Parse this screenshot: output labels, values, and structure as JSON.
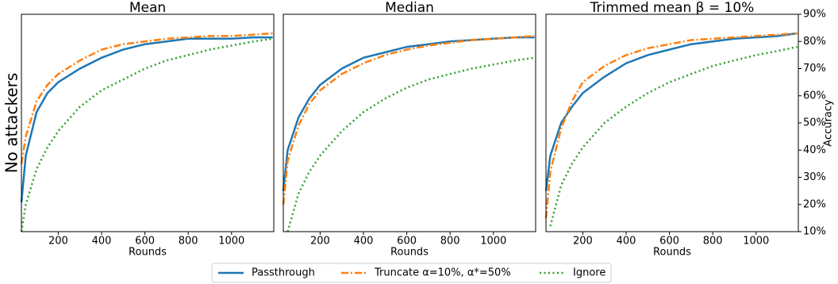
{
  "chart_data": [
    {
      "type": "line",
      "title": "Mean",
      "ylabel": "No attackers",
      "xlabel": "Rounds",
      "x": [
        30,
        50,
        100,
        150,
        200,
        300,
        400,
        500,
        600,
        700,
        800,
        900,
        1000,
        1100,
        1190
      ],
      "xlim": [
        30,
        1195
      ],
      "xticks": [
        200,
        400,
        600,
        800,
        1000
      ],
      "ylim": [
        10,
        90
      ],
      "series": [
        {
          "values": [
            20.8,
            38,
            54,
            61,
            65,
            70,
            74,
            77,
            79,
            80,
            81,
            81,
            81,
            81.5,
            81.5
          ]
        },
        {
          "values": [
            35,
            45,
            58,
            64,
            68,
            73,
            77,
            79,
            80,
            81,
            81.5,
            82,
            82,
            82.5,
            83
          ]
        },
        {
          "values": [
            10,
            20,
            33,
            41,
            47,
            56,
            62,
            66,
            70,
            73,
            75,
            77,
            78.5,
            80,
            81
          ]
        }
      ]
    },
    {
      "type": "line",
      "title": "Median",
      "xlabel": "Rounds",
      "x": [
        30,
        50,
        100,
        150,
        200,
        300,
        400,
        500,
        600,
        700,
        800,
        900,
        1000,
        1100,
        1190
      ],
      "xlim": [
        30,
        1195
      ],
      "xticks": [
        200,
        400,
        600,
        800,
        1000
      ],
      "ylim": [
        10,
        90
      ],
      "series": [
        {
          "values": [
            25,
            40,
            52,
            59,
            64,
            70,
            74,
            76,
            78,
            79,
            80,
            80.5,
            81,
            81.5,
            81.5
          ]
        },
        {
          "values": [
            20,
            36,
            49,
            57,
            62,
            68,
            72,
            75,
            77,
            78.5,
            79.5,
            80.5,
            81,
            81.5,
            82
          ]
        },
        {
          "values": [
            null,
            10,
            24,
            32,
            38,
            47,
            54,
            59,
            63,
            66,
            68,
            70,
            71.5,
            73,
            74
          ]
        }
      ]
    },
    {
      "type": "line",
      "title": "Trimmed mean β = 10%",
      "xlabel": "Rounds",
      "ylabel": "Accuracy",
      "x": [
        30,
        50,
        100,
        150,
        200,
        300,
        400,
        500,
        600,
        700,
        800,
        900,
        1000,
        1100,
        1190
      ],
      "xlim": [
        30,
        1195
      ],
      "xticks": [
        200,
        400,
        600,
        800,
        1000
      ],
      "ylim": [
        10,
        90
      ],
      "yticks": [
        {
          "value": 10,
          "label": "10%"
        },
        {
          "value": 20,
          "label": "20%"
        },
        {
          "value": 30,
          "label": "30%"
        },
        {
          "value": 40,
          "label": "40%"
        },
        {
          "value": 50,
          "label": "50%"
        },
        {
          "value": 60,
          "label": "60%"
        },
        {
          "value": 70,
          "label": "70%"
        },
        {
          "value": 80,
          "label": "80%"
        },
        {
          "value": 90,
          "label": "90%"
        }
      ],
      "series": [
        {
          "values": [
            25,
            38,
            50,
            56,
            61,
            67,
            72,
            75,
            77,
            79,
            80,
            81,
            81.5,
            82,
            83
          ]
        },
        {
          "values": [
            15,
            32,
            48,
            58,
            65,
            71,
            75,
            77.5,
            79,
            80.5,
            81,
            81.5,
            82,
            82.5,
            83
          ]
        },
        {
          "values": [
            null,
            12,
            27,
            35,
            41,
            50,
            56,
            61,
            65,
            68,
            71,
            73,
            75,
            76.5,
            78
          ]
        }
      ]
    }
  ],
  "legend": [
    {
      "name": "Passthrough",
      "color": "#1f77b4",
      "style": "solid"
    },
    {
      "name": "Truncate α=10%, α*=50%",
      "color": "#ff7f0e",
      "style": "dashdot"
    },
    {
      "name": "Ignore",
      "color": "#2ca02c",
      "style": "dotted"
    }
  ]
}
